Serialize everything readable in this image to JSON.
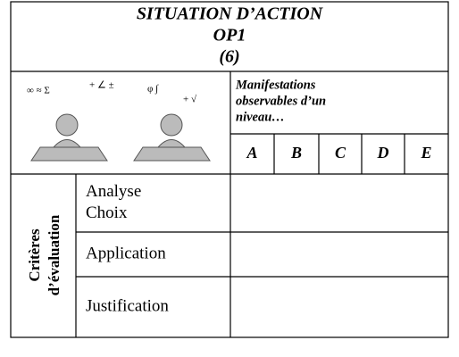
{
  "header": {
    "title_lines": [
      "SITUATION D’ACTION",
      "OP1",
      "(6)"
    ]
  },
  "manifestations": {
    "lines": [
      "Manifestations",
      "observables d’un",
      "niveau…"
    ]
  },
  "levels": [
    "A",
    "B",
    "C",
    "D",
    "E"
  ],
  "criteria": {
    "label_lines": [
      "Critères",
      "d’évaluation"
    ],
    "rows": [
      [
        "Analyse",
        "Choix"
      ],
      [
        "Application"
      ],
      [
        "Justification"
      ]
    ]
  }
}
